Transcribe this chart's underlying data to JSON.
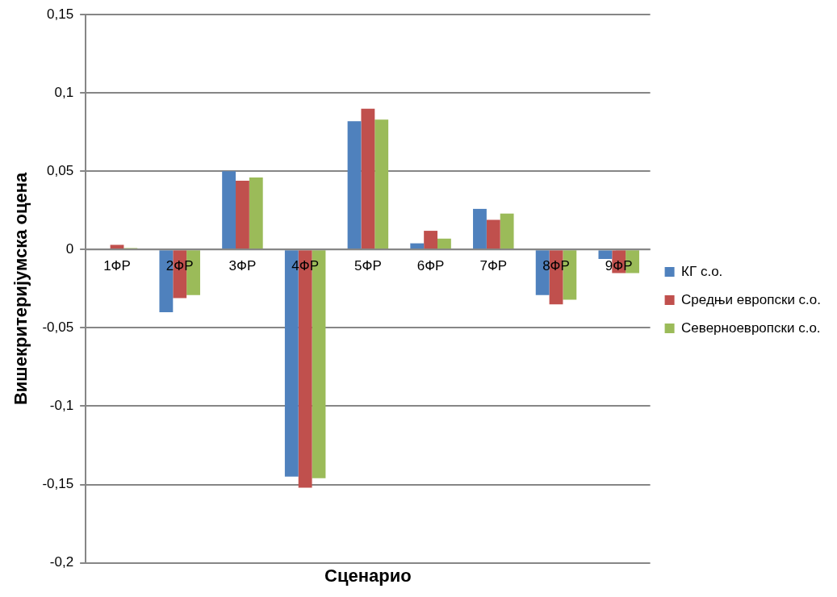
{
  "chart_data": {
    "type": "bar",
    "xlabel": "Сценарио",
    "ylabel": "Вишекритеријумска оцена",
    "categories": [
      "1ФР",
      "2ФР",
      "3ФР",
      "4ФР",
      "5ФР",
      "6ФР",
      "7ФР",
      "8ФР",
      "9ФР"
    ],
    "series": [
      {
        "name": "КГ с.о.",
        "color": "#4f81bd",
        "values": [
          -0.0005,
          -0.04,
          0.05,
          -0.145,
          0.082,
          0.004,
          0.026,
          -0.029,
          -0.006
        ]
      },
      {
        "name": "Средњи европски с.о.",
        "color": "#c0504d",
        "values": [
          0.003,
          -0.031,
          0.044,
          -0.152,
          0.09,
          0.012,
          0.019,
          -0.035,
          -0.015
        ]
      },
      {
        "name": "Северноевропски с.о.",
        "color": "#9bbb59",
        "values": [
          0.001,
          -0.029,
          0.046,
          -0.146,
          0.083,
          0.007,
          0.023,
          -0.032,
          -0.015
        ]
      }
    ],
    "ylim": [
      -0.2,
      0.15
    ],
    "yticks": [
      {
        "value": -0.2,
        "label": "-0,2"
      },
      {
        "value": -0.15,
        "label": "-0,15"
      },
      {
        "value": -0.1,
        "label": "-0,1"
      },
      {
        "value": -0.05,
        "label": "-0,05"
      },
      {
        "value": 0,
        "label": "0"
      },
      {
        "value": 0.05,
        "label": "0,05"
      },
      {
        "value": 0.1,
        "label": "0,1"
      },
      {
        "value": 0.15,
        "label": "0,15"
      }
    ],
    "grid": "y",
    "legend": "right"
  }
}
